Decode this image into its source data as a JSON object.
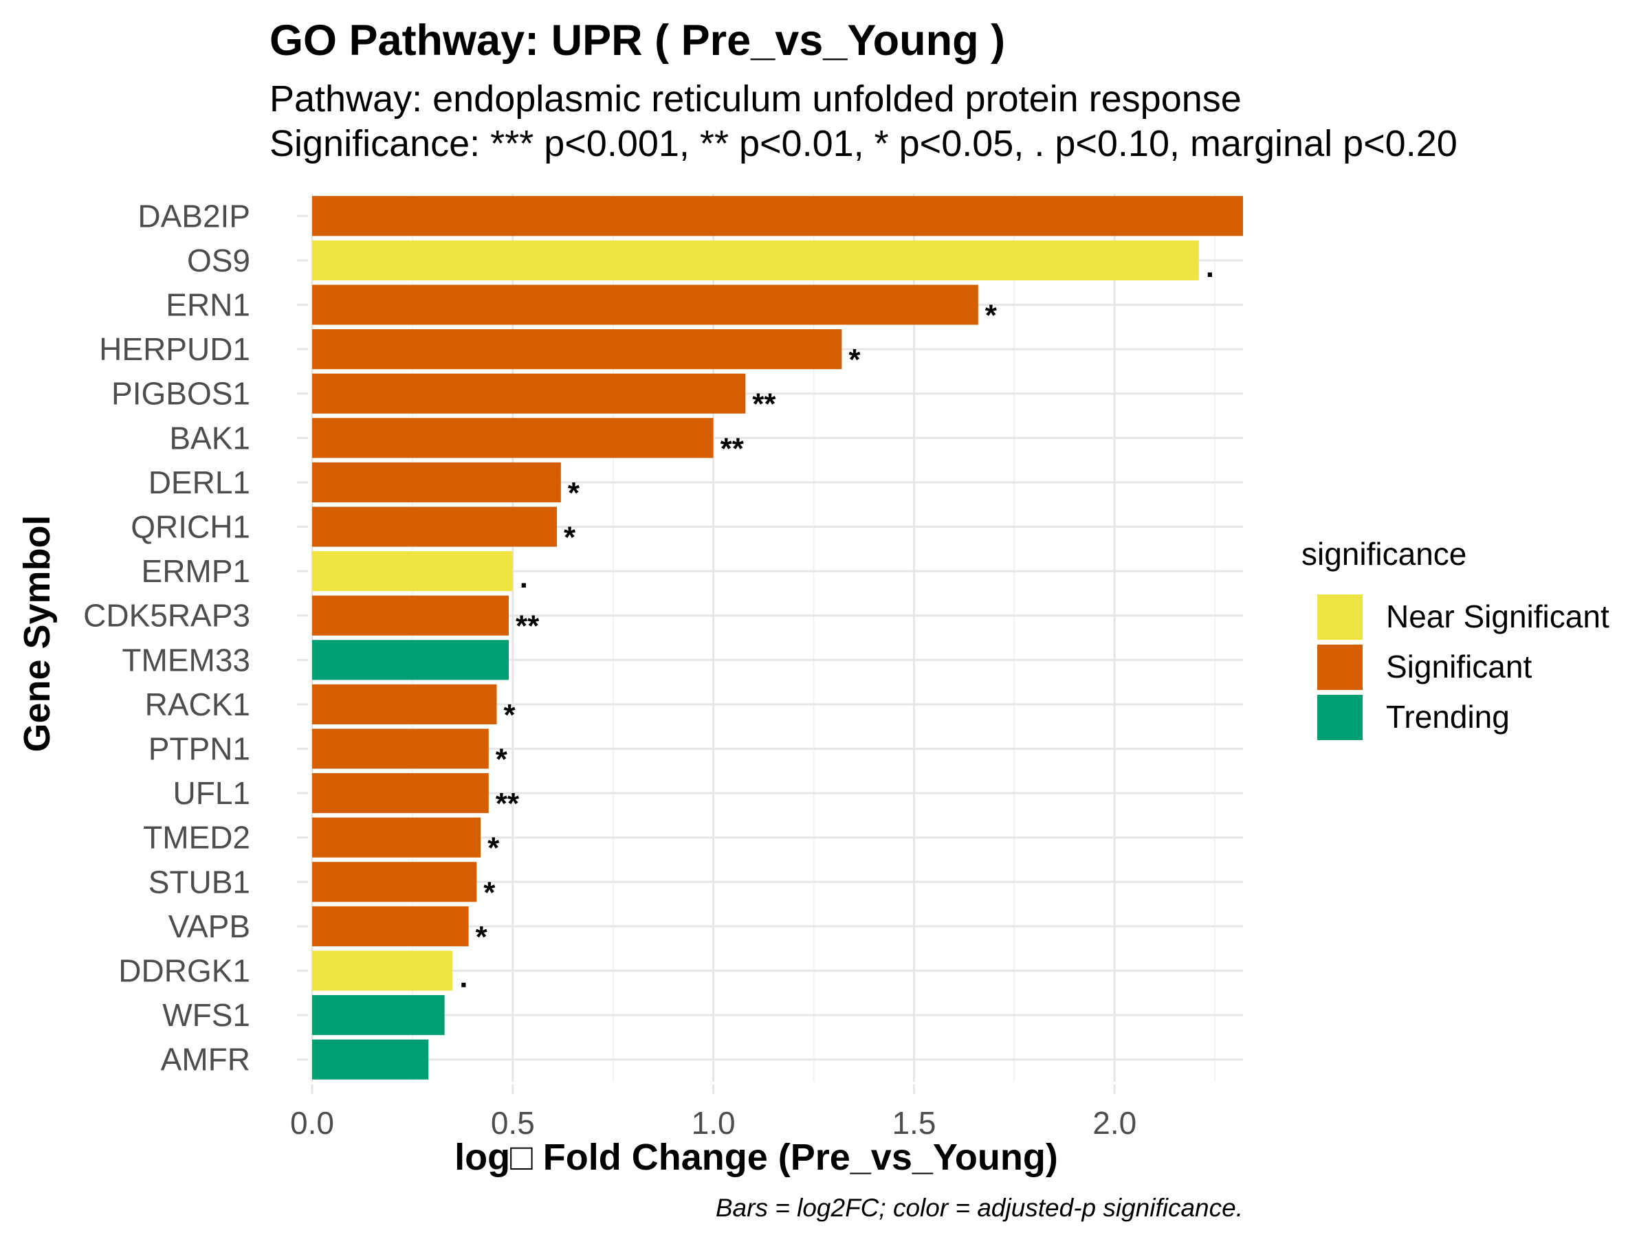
{
  "chart_data": {
    "type": "bar",
    "orientation": "horizontal",
    "title": "GO Pathway: UPR ( Pre_vs_Young )",
    "subtitle_lines": [
      "Pathway: endoplasmic reticulum unfolded protein response",
      "Significance: *** p<0.001, ** p<0.01, * p<0.05, . p<0.10, marginal p<0.20"
    ],
    "xlabel": "log□ Fold Change (Pre_vs_Young)",
    "ylabel": "Gene Symbol",
    "caption": "Bars = log2FC; color = adjusted-p significance.",
    "xlim": [
      0,
      2.32
    ],
    "x_ticks": [
      0.0,
      0.5,
      1.0,
      1.5,
      2.0
    ],
    "x_tick_labels": [
      "0.0",
      "0.5",
      "1.0",
      "1.5",
      "2.0"
    ],
    "grid": true,
    "legend": {
      "title": "significance",
      "position": "right",
      "entries": [
        {
          "label": "Near Significant",
          "color": "#F0E442"
        },
        {
          "label": "Significant",
          "color": "#D55E00"
        },
        {
          "label": "Trending",
          "color": "#009E73"
        }
      ]
    },
    "bars": [
      {
        "gene": "DAB2IP",
        "value": 2.32,
        "category": "Significant",
        "sig": ""
      },
      {
        "gene": "OS9",
        "value": 2.21,
        "category": "Near Significant",
        "sig": "."
      },
      {
        "gene": "ERN1",
        "value": 1.66,
        "category": "Significant",
        "sig": "*"
      },
      {
        "gene": "HERPUD1",
        "value": 1.32,
        "category": "Significant",
        "sig": "*"
      },
      {
        "gene": "PIGBOS1",
        "value": 1.08,
        "category": "Significant",
        "sig": "**"
      },
      {
        "gene": "BAK1",
        "value": 1.0,
        "category": "Significant",
        "sig": "**"
      },
      {
        "gene": "DERL1",
        "value": 0.62,
        "category": "Significant",
        "sig": "*"
      },
      {
        "gene": "QRICH1",
        "value": 0.61,
        "category": "Significant",
        "sig": "*"
      },
      {
        "gene": "ERMP1",
        "value": 0.5,
        "category": "Near Significant",
        "sig": "."
      },
      {
        "gene": "CDK5RAP3",
        "value": 0.49,
        "category": "Significant",
        "sig": "**"
      },
      {
        "gene": "TMEM33",
        "value": 0.49,
        "category": "Trending",
        "sig": ""
      },
      {
        "gene": "RACK1",
        "value": 0.46,
        "category": "Significant",
        "sig": "*"
      },
      {
        "gene": "PTPN1",
        "value": 0.44,
        "category": "Significant",
        "sig": "*"
      },
      {
        "gene": "UFL1",
        "value": 0.44,
        "category": "Significant",
        "sig": "**"
      },
      {
        "gene": "TMED2",
        "value": 0.42,
        "category": "Significant",
        "sig": "*"
      },
      {
        "gene": "STUB1",
        "value": 0.41,
        "category": "Significant",
        "sig": "*"
      },
      {
        "gene": "VAPB",
        "value": 0.39,
        "category": "Significant",
        "sig": "*"
      },
      {
        "gene": "DDRGK1",
        "value": 0.35,
        "category": "Near Significant",
        "sig": "."
      },
      {
        "gene": "WFS1",
        "value": 0.33,
        "category": "Trending",
        "sig": ""
      },
      {
        "gene": "AMFR",
        "value": 0.29,
        "category": "Trending",
        "sig": ""
      }
    ]
  }
}
